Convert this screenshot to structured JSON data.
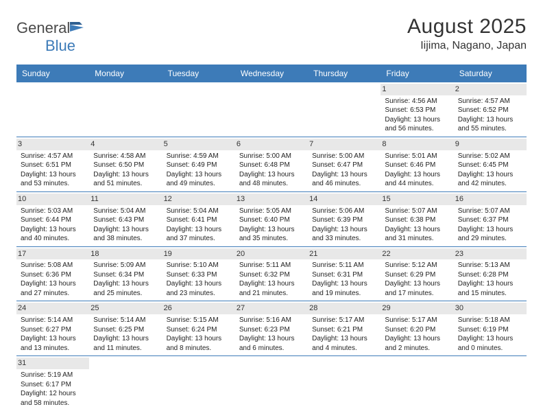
{
  "brand": {
    "part1": "General",
    "part2": "Blue"
  },
  "title": "August 2025",
  "location": "Iijima, Nagano, Japan",
  "colors": {
    "header_bg": "#3d7bb8",
    "header_text": "#ffffff",
    "num_bg": "#e8e8e8",
    "row_border": "#3d7bb8",
    "text": "#222222"
  },
  "day_labels": [
    "Sunday",
    "Monday",
    "Tuesday",
    "Wednesday",
    "Thursday",
    "Friday",
    "Saturday"
  ],
  "weeks": [
    [
      {
        "empty": true
      },
      {
        "empty": true
      },
      {
        "empty": true
      },
      {
        "empty": true
      },
      {
        "empty": true
      },
      {
        "num": "1",
        "sunrise": "Sunrise: 4:56 AM",
        "sunset": "Sunset: 6:53 PM",
        "day1": "Daylight: 13 hours",
        "day2": "and 56 minutes."
      },
      {
        "num": "2",
        "sunrise": "Sunrise: 4:57 AM",
        "sunset": "Sunset: 6:52 PM",
        "day1": "Daylight: 13 hours",
        "day2": "and 55 minutes."
      }
    ],
    [
      {
        "num": "3",
        "sunrise": "Sunrise: 4:57 AM",
        "sunset": "Sunset: 6:51 PM",
        "day1": "Daylight: 13 hours",
        "day2": "and 53 minutes."
      },
      {
        "num": "4",
        "sunrise": "Sunrise: 4:58 AM",
        "sunset": "Sunset: 6:50 PM",
        "day1": "Daylight: 13 hours",
        "day2": "and 51 minutes."
      },
      {
        "num": "5",
        "sunrise": "Sunrise: 4:59 AM",
        "sunset": "Sunset: 6:49 PM",
        "day1": "Daylight: 13 hours",
        "day2": "and 49 minutes."
      },
      {
        "num": "6",
        "sunrise": "Sunrise: 5:00 AM",
        "sunset": "Sunset: 6:48 PM",
        "day1": "Daylight: 13 hours",
        "day2": "and 48 minutes."
      },
      {
        "num": "7",
        "sunrise": "Sunrise: 5:00 AM",
        "sunset": "Sunset: 6:47 PM",
        "day1": "Daylight: 13 hours",
        "day2": "and 46 minutes."
      },
      {
        "num": "8",
        "sunrise": "Sunrise: 5:01 AM",
        "sunset": "Sunset: 6:46 PM",
        "day1": "Daylight: 13 hours",
        "day2": "and 44 minutes."
      },
      {
        "num": "9",
        "sunrise": "Sunrise: 5:02 AM",
        "sunset": "Sunset: 6:45 PM",
        "day1": "Daylight: 13 hours",
        "day2": "and 42 minutes."
      }
    ],
    [
      {
        "num": "10",
        "sunrise": "Sunrise: 5:03 AM",
        "sunset": "Sunset: 6:44 PM",
        "day1": "Daylight: 13 hours",
        "day2": "and 40 minutes."
      },
      {
        "num": "11",
        "sunrise": "Sunrise: 5:04 AM",
        "sunset": "Sunset: 6:43 PM",
        "day1": "Daylight: 13 hours",
        "day2": "and 38 minutes."
      },
      {
        "num": "12",
        "sunrise": "Sunrise: 5:04 AM",
        "sunset": "Sunset: 6:41 PM",
        "day1": "Daylight: 13 hours",
        "day2": "and 37 minutes."
      },
      {
        "num": "13",
        "sunrise": "Sunrise: 5:05 AM",
        "sunset": "Sunset: 6:40 PM",
        "day1": "Daylight: 13 hours",
        "day2": "and 35 minutes."
      },
      {
        "num": "14",
        "sunrise": "Sunrise: 5:06 AM",
        "sunset": "Sunset: 6:39 PM",
        "day1": "Daylight: 13 hours",
        "day2": "and 33 minutes."
      },
      {
        "num": "15",
        "sunrise": "Sunrise: 5:07 AM",
        "sunset": "Sunset: 6:38 PM",
        "day1": "Daylight: 13 hours",
        "day2": "and 31 minutes."
      },
      {
        "num": "16",
        "sunrise": "Sunrise: 5:07 AM",
        "sunset": "Sunset: 6:37 PM",
        "day1": "Daylight: 13 hours",
        "day2": "and 29 minutes."
      }
    ],
    [
      {
        "num": "17",
        "sunrise": "Sunrise: 5:08 AM",
        "sunset": "Sunset: 6:36 PM",
        "day1": "Daylight: 13 hours",
        "day2": "and 27 minutes."
      },
      {
        "num": "18",
        "sunrise": "Sunrise: 5:09 AM",
        "sunset": "Sunset: 6:34 PM",
        "day1": "Daylight: 13 hours",
        "day2": "and 25 minutes."
      },
      {
        "num": "19",
        "sunrise": "Sunrise: 5:10 AM",
        "sunset": "Sunset: 6:33 PM",
        "day1": "Daylight: 13 hours",
        "day2": "and 23 minutes."
      },
      {
        "num": "20",
        "sunrise": "Sunrise: 5:11 AM",
        "sunset": "Sunset: 6:32 PM",
        "day1": "Daylight: 13 hours",
        "day2": "and 21 minutes."
      },
      {
        "num": "21",
        "sunrise": "Sunrise: 5:11 AM",
        "sunset": "Sunset: 6:31 PM",
        "day1": "Daylight: 13 hours",
        "day2": "and 19 minutes."
      },
      {
        "num": "22",
        "sunrise": "Sunrise: 5:12 AM",
        "sunset": "Sunset: 6:29 PM",
        "day1": "Daylight: 13 hours",
        "day2": "and 17 minutes."
      },
      {
        "num": "23",
        "sunrise": "Sunrise: 5:13 AM",
        "sunset": "Sunset: 6:28 PM",
        "day1": "Daylight: 13 hours",
        "day2": "and 15 minutes."
      }
    ],
    [
      {
        "num": "24",
        "sunrise": "Sunrise: 5:14 AM",
        "sunset": "Sunset: 6:27 PM",
        "day1": "Daylight: 13 hours",
        "day2": "and 13 minutes."
      },
      {
        "num": "25",
        "sunrise": "Sunrise: 5:14 AM",
        "sunset": "Sunset: 6:25 PM",
        "day1": "Daylight: 13 hours",
        "day2": "and 11 minutes."
      },
      {
        "num": "26",
        "sunrise": "Sunrise: 5:15 AM",
        "sunset": "Sunset: 6:24 PM",
        "day1": "Daylight: 13 hours",
        "day2": "and 8 minutes."
      },
      {
        "num": "27",
        "sunrise": "Sunrise: 5:16 AM",
        "sunset": "Sunset: 6:23 PM",
        "day1": "Daylight: 13 hours",
        "day2": "and 6 minutes."
      },
      {
        "num": "28",
        "sunrise": "Sunrise: 5:17 AM",
        "sunset": "Sunset: 6:21 PM",
        "day1": "Daylight: 13 hours",
        "day2": "and 4 minutes."
      },
      {
        "num": "29",
        "sunrise": "Sunrise: 5:17 AM",
        "sunset": "Sunset: 6:20 PM",
        "day1": "Daylight: 13 hours",
        "day2": "and 2 minutes."
      },
      {
        "num": "30",
        "sunrise": "Sunrise: 5:18 AM",
        "sunset": "Sunset: 6:19 PM",
        "day1": "Daylight: 13 hours",
        "day2": "and 0 minutes."
      }
    ],
    [
      {
        "num": "31",
        "sunrise": "Sunrise: 5:19 AM",
        "sunset": "Sunset: 6:17 PM",
        "day1": "Daylight: 12 hours",
        "day2": "and 58 minutes."
      },
      {
        "empty": true
      },
      {
        "empty": true
      },
      {
        "empty": true
      },
      {
        "empty": true
      },
      {
        "empty": true
      },
      {
        "empty": true
      }
    ]
  ]
}
